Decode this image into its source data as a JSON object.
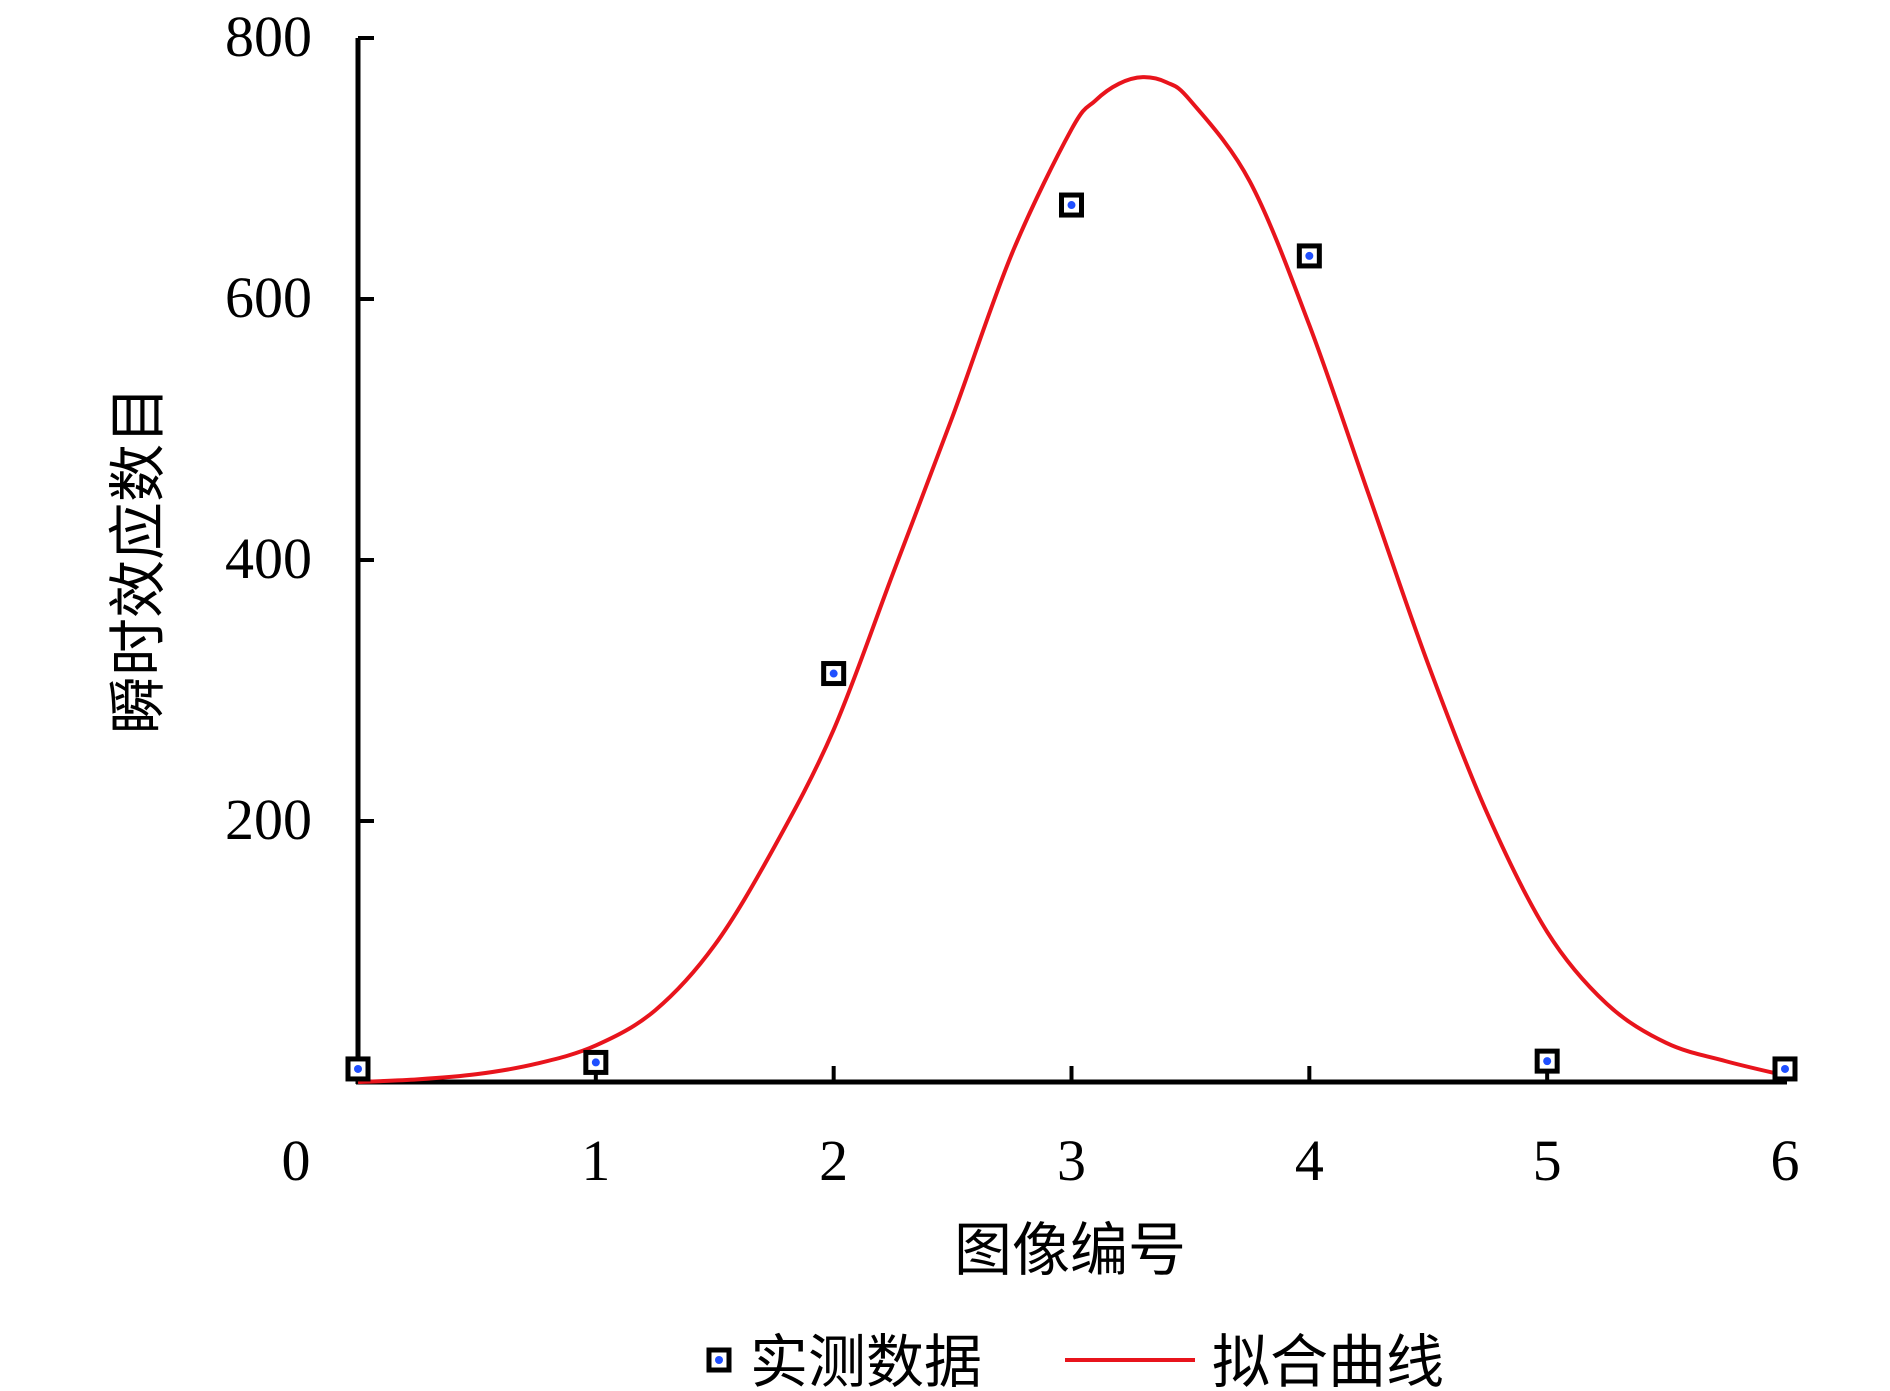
{
  "chart_data": {
    "type": "scatter",
    "xlabel": "图像编号",
    "ylabel": "瞬时效应数目",
    "xlim": [
      0,
      6
    ],
    "ylim": [
      0,
      800
    ],
    "x_ticks": [
      "0",
      "1",
      "2",
      "3",
      "4",
      "5",
      "6"
    ],
    "y_ticks": [
      "200",
      "400",
      "600",
      "800"
    ],
    "legend_position": "bottom",
    "series": [
      {
        "name": "实测数据",
        "kind": "scatter",
        "color": "#000000",
        "marker_dot_color": "#1f4fff",
        "x": [
          0,
          1,
          2,
          3,
          4,
          5,
          6
        ],
        "y": [
          10,
          15,
          313,
          672,
          633,
          16,
          10
        ]
      },
      {
        "name": "拟合曲线",
        "kind": "line",
        "color": "#e8141c",
        "x": [
          0,
          0.25,
          0.5,
          0.75,
          1,
          1.25,
          1.5,
          1.75,
          2,
          2.25,
          2.5,
          2.75,
          3,
          3.1,
          3.2,
          3.3,
          3.4,
          3.5,
          3.75,
          4,
          4.25,
          4.5,
          4.75,
          5,
          5.25,
          5.5,
          5.75,
          6
        ],
        "y": [
          0,
          2,
          6,
          14,
          28,
          55,
          105,
          180,
          270,
          390,
          510,
          635,
          730,
          752,
          765,
          770,
          766,
          752,
          690,
          580,
          450,
          320,
          205,
          115,
          60,
          30,
          16,
          5
        ]
      }
    ]
  }
}
